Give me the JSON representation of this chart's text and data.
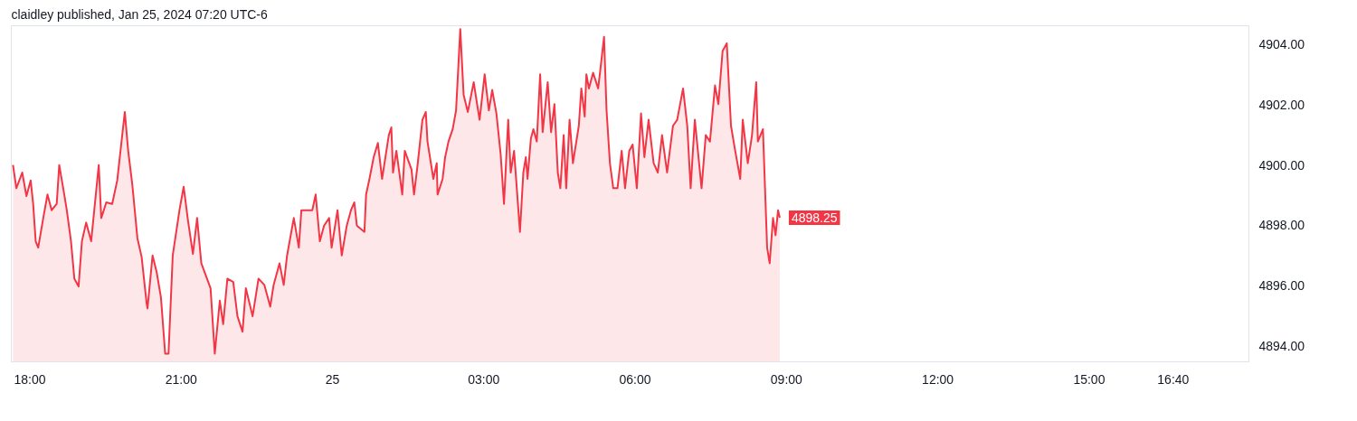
{
  "chart_data": {
    "type": "area",
    "title": "claidley published, Jan 25, 2024 07:20 UTC-6",
    "x": [
      "2024-01-24T17:40",
      "2024-01-24T17:44",
      "2024-01-24T17:51",
      "2024-01-24T17:56",
      "2024-01-24T18:01",
      "2024-01-24T18:04",
      "2024-01-24T18:07",
      "2024-01-24T18:10",
      "2024-01-24T18:16",
      "2024-01-24T18:21",
      "2024-01-24T18:26",
      "2024-01-24T18:32",
      "2024-01-24T18:35",
      "2024-01-24T18:41",
      "2024-01-24T18:44",
      "2024-01-24T18:49",
      "2024-01-24T18:53",
      "2024-01-24T18:58",
      "2024-01-24T19:02",
      "2024-01-24T19:07",
      "2024-01-24T19:13",
      "2024-01-24T19:22",
      "2024-01-24T19:25",
      "2024-01-24T19:31",
      "2024-01-24T19:38",
      "2024-01-24T19:44",
      "2024-01-24T19:53",
      "2024-01-24T19:57",
      "2024-01-24T20:02",
      "2024-01-24T20:08",
      "2024-01-24T20:13",
      "2024-01-24T20:19",
      "2024-01-24T20:20",
      "2024-01-24T20:26",
      "2024-01-24T20:31",
      "2024-01-24T20:36",
      "2024-01-24T20:41",
      "2024-01-24T20:45",
      "2024-01-24T20:50",
      "2024-01-24T20:58",
      "2024-01-24T21:03",
      "2024-01-24T21:08",
      "2024-01-24T21:14",
      "2024-01-24T21:19",
      "2024-01-24T21:24",
      "2024-01-24T21:35",
      "2024-01-24T21:40",
      "2024-01-24T21:46",
      "2024-01-24T21:50",
      "2024-01-24T21:55",
      "2024-01-24T22:02",
      "2024-01-24T22:07",
      "2024-01-24T22:13",
      "2024-01-24T22:17",
      "2024-01-24T22:25",
      "2024-01-24T22:32",
      "2024-01-24T22:39",
      "2024-01-24T22:46",
      "2024-01-24T22:50",
      "2024-01-24T22:57",
      "2024-01-24T23:02",
      "2024-01-24T23:06",
      "2024-01-24T23:14",
      "2024-01-24T23:20",
      "2024-01-24T23:23",
      "2024-01-24T23:36",
      "2024-01-24T23:40",
      "2024-01-24T23:45",
      "2024-01-24T23:50",
      "2024-01-24T23:56",
      "2024-01-24T23:59",
      "2024-01-25T00:06",
      "2024-01-25T00:11",
      "2024-01-25T00:17",
      "2024-01-25T00:22",
      "2024-01-25T00:26",
      "2024-01-25T00:29",
      "2024-01-25T00:38",
      "2024-01-25T00:40",
      "2024-01-25T00:44",
      "2024-01-25T00:49",
      "2024-01-25T00:54",
      "2024-01-25T00:59",
      "2024-01-25T01:07",
      "2024-01-25T01:10",
      "2024-01-25T01:12",
      "2024-01-25T01:16",
      "2024-01-25T01:23",
      "2024-01-25T01:26",
      "2024-01-25T01:34",
      "2024-01-25T01:37",
      "2024-01-25T01:41",
      "2024-01-25T01:47",
      "2024-01-25T01:51",
      "2024-01-25T01:53",
      "2024-01-25T02:00",
      "2024-01-25T02:04",
      "2024-01-25T02:05",
      "2024-01-25T02:11",
      "2024-01-25T02:14",
      "2024-01-25T02:18",
      "2024-01-25T02:23",
      "2024-01-25T02:27",
      "2024-01-25T02:32",
      "2024-01-25T02:36",
      "2024-01-25T02:41",
      "2024-01-25T02:48",
      "2024-01-25T02:52",
      "2024-01-25T02:55",
      "2024-01-25T03:01",
      "2024-01-25T03:06",
      "2024-01-25T03:10",
      "2024-01-25T03:15",
      "2024-01-25T03:20",
      "2024-01-25T03:24",
      "2024-01-25T03:29",
      "2024-01-25T03:32",
      "2024-01-25T03:36",
      "2024-01-25T03:43",
      "2024-01-25T03:47",
      "2024-01-25T03:50",
      "2024-01-25T03:52",
      "2024-01-25T03:56",
      "2024-01-25T03:59",
      "2024-01-25T04:03",
      "2024-01-25T04:07",
      "2024-01-25T04:10",
      "2024-01-25T04:16",
      "2024-01-25T04:20",
      "2024-01-25T04:24",
      "2024-01-25T04:28",
      "2024-01-25T04:31",
      "2024-01-25T04:35",
      "2024-01-25T04:38",
      "2024-01-25T04:42",
      "2024-01-25T04:46",
      "2024-01-25T04:53",
      "2024-01-25T04:56",
      "2024-01-25T05:00",
      "2024-01-25T05:02",
      "2024-01-25T05:05",
      "2024-01-25T05:10",
      "2024-01-25T05:16",
      "2024-01-25T05:19",
      "2024-01-25T05:23",
      "2024-01-25T05:26",
      "2024-01-25T05:30",
      "2024-01-25T05:34",
      "2024-01-25T05:39",
      "2024-01-25T05:44",
      "2024-01-25T05:48",
      "2024-01-25T05:53",
      "2024-01-25T05:57",
      "2024-01-25T06:02",
      "2024-01-25T06:07",
      "2024-01-25T06:11",
      "2024-01-25T06:16",
      "2024-01-25T06:22",
      "2024-01-25T06:27",
      "2024-01-25T06:32",
      "2024-01-25T06:38",
      "2024-01-25T06:45",
      "2024-01-25T06:50",
      "2024-01-25T06:57",
      "2024-01-25T07:02",
      "2024-01-25T07:06",
      "2024-01-25T07:11",
      "2024-01-25T07:19",
      "2024-01-25T07:24",
      "2024-01-25T07:29",
      "2024-01-25T07:35",
      "2024-01-25T07:39",
      "2024-01-25T07:44",
      "2024-01-25T07:49",
      "2024-01-25T07:54",
      "2024-01-25T07:59",
      "2024-01-25T08:05",
      "2024-01-25T08:08",
      "2024-01-25T08:14",
      "2024-01-25T08:19",
      "2024-01-25T08:24",
      "2024-01-25T08:26",
      "2024-01-25T08:32",
      "2024-01-25T08:37",
      "2024-01-25T08:40",
      "2024-01-25T08:44",
      "2024-01-25T08:47",
      "2024-01-25T08:50",
      "2024-01-25T08:52"
    ],
    "series": [
      {
        "color": "#f23645",
        "values": [
          4900.0,
          4899.23,
          4899.75,
          4898.97,
          4899.49,
          4898.71,
          4897.47,
          4897.26,
          4898.24,
          4899.02,
          4898.5,
          4898.71,
          4900.0,
          4899.02,
          4898.5,
          4897.47,
          4896.23,
          4895.97,
          4897.47,
          4898.09,
          4897.47,
          4900.0,
          4898.24,
          4898.76,
          4898.71,
          4899.49,
          4901.76,
          4900.47,
          4899.33,
          4897.57,
          4896.95,
          4895.4,
          4895.24,
          4897.0,
          4896.43,
          4895.6,
          4893.74,
          4893.74,
          4897.0,
          4898.5,
          4899.28,
          4898.19,
          4897.05,
          4898.24,
          4896.74,
          4895.91,
          4893.74,
          4895.5,
          4894.72,
          4896.23,
          4896.12,
          4894.98,
          4894.47,
          4895.91,
          4894.98,
          4896.23,
          4896.02,
          4895.3,
          4896.02,
          4896.74,
          4896.02,
          4897.0,
          4898.24,
          4897.26,
          4898.5,
          4898.5,
          4899.02,
          4897.47,
          4897.99,
          4898.24,
          4897.26,
          4898.5,
          4897.0,
          4897.99,
          4898.5,
          4898.76,
          4897.99,
          4897.78,
          4899.02,
          4899.54,
          4900.26,
          4900.73,
          4899.54,
          4900.99,
          4901.25,
          4899.75,
          4900.47,
          4899.02,
          4900.47,
          4899.85,
          4899.02,
          4899.95,
          4901.5,
          4901.76,
          4900.78,
          4899.54,
          4900.06,
          4899.02,
          4899.54,
          4900.26,
          4900.78,
          4901.19,
          4901.81,
          4904.51,
          4902.33,
          4901.76,
          4902.75,
          4902.02,
          4901.5,
          4903.01,
          4901.81,
          4902.49,
          4901.71,
          4900.37,
          4898.71,
          4901.5,
          4899.75,
          4900.47,
          4897.78,
          4899.75,
          4900.26,
          4899.54,
          4900.88,
          4901.19,
          4900.78,
          4903.01,
          4901.09,
          4902.75,
          4901.09,
          4902.02,
          4899.75,
          4899.23,
          4900.99,
          4899.23,
          4901.5,
          4900.06,
          4901.3,
          4902.54,
          4901.61,
          4903.01,
          4902.54,
          4903.06,
          4902.54,
          4903.26,
          4904.25,
          4901.81,
          4900.06,
          4899.23,
          4899.23,
          4900.47,
          4899.23,
          4900.47,
          4900.68,
          4899.23,
          4901.71,
          4900.26,
          4901.5,
          4900.06,
          4899.75,
          4900.99,
          4899.75,
          4901.3,
          4901.5,
          4902.54,
          4901.3,
          4899.23,
          4901.5,
          4899.23,
          4900.99,
          4900.78,
          4902.64,
          4902.02,
          4903.78,
          4904.04,
          4901.3,
          4900.47,
          4899.54,
          4901.5,
          4900.06,
          4900.99,
          4902.75,
          4900.78,
          4901.19,
          4897.26,
          4896.74,
          4898.24,
          4897.67,
          4898.5,
          4898.25
        ]
      }
    ],
    "xlim": [
      "2024-01-24T17:38",
      "2024-01-25T18:10"
    ],
    "ylim": [
      4893.47,
      4904.62
    ],
    "xticks": [
      {
        "value": "2024-01-24T18:00",
        "label": "18:00"
      },
      {
        "value": "2024-01-24T21:00",
        "label": "21:00"
      },
      {
        "value": "2024-01-25T00:00",
        "label": "25"
      },
      {
        "value": "2024-01-25T03:00",
        "label": "03:00"
      },
      {
        "value": "2024-01-25T06:00",
        "label": "06:00"
      },
      {
        "value": "2024-01-25T09:00",
        "label": "09:00"
      },
      {
        "value": "2024-01-25T12:00",
        "label": "12:00"
      },
      {
        "value": "2024-01-25T15:00",
        "label": "15:00"
      },
      {
        "value": "2024-01-25T16:40",
        "label": "16:40"
      }
    ],
    "yticks": [
      {
        "value": 4894,
        "label": "4894.00"
      },
      {
        "value": 4896,
        "label": "4896.00"
      },
      {
        "value": 4898,
        "label": "4898.00"
      },
      {
        "value": 4900,
        "label": "4900.00"
      },
      {
        "value": 4902,
        "label": "4902.00"
      },
      {
        "value": 4904,
        "label": "4904.00"
      }
    ],
    "annotations": [
      {
        "text": "4898.25",
        "x": "2024-01-25T08:52",
        "y": 4898.25
      }
    ],
    "grid": false
  }
}
